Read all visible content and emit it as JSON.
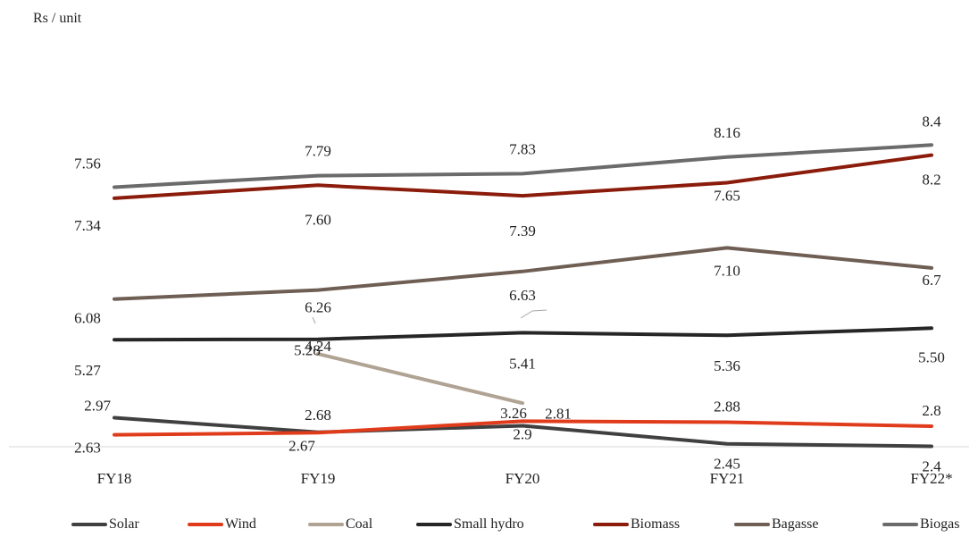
{
  "chart_data": {
    "type": "line",
    "ylabel": "Rs / unit",
    "xlabel": "",
    "categories": [
      "FY18",
      "FY19",
      "FY20",
      "FY21",
      "FY22*"
    ],
    "ylim": [
      0,
      9
    ],
    "grid": false,
    "legend_position": "bottom",
    "series": [
      {
        "name": "Solar",
        "color": "#404040",
        "values": [
          2.97,
          2.68,
          2.81,
          2.45,
          2.4
        ],
        "labels": [
          "2.97",
          "2.68",
          "2.81",
          "2.45",
          "2.4"
        ]
      },
      {
        "name": "Wind",
        "color": "#e03c1c",
        "values": [
          2.63,
          2.67,
          2.9,
          2.88,
          2.8
        ],
        "labels": [
          "2.63",
          "2.67",
          "2.9",
          "2.88",
          "2.8"
        ]
      },
      {
        "name": "Coal",
        "color": "#b0a393",
        "values": [
          null,
          4.24,
          3.26,
          null,
          null
        ],
        "labels": [
          "",
          "4.24",
          "3.26",
          "",
          ""
        ]
      },
      {
        "name": "Small hydro",
        "color": "#262626",
        "values": [
          5.27,
          5.28,
          5.41,
          5.36,
          5.5
        ],
        "labels": [
          "5.27",
          "5.28",
          "5.41",
          "5.36",
          "5.50"
        ]
      },
      {
        "name": "Biomass",
        "color": "#8b1c0c",
        "values": [
          7.34,
          7.6,
          7.39,
          7.65,
          8.2
        ],
        "labels": [
          "7.34",
          "7.60",
          "7.39",
          "7.65",
          "8.2"
        ]
      },
      {
        "name": "Bagasse",
        "color": "#6e5e54",
        "values": [
          6.08,
          6.26,
          6.63,
          7.1,
          6.7
        ],
        "labels": [
          "6.08",
          "6.26",
          "6.63",
          "7.10",
          "6.7"
        ]
      },
      {
        "name": "Biogas",
        "color": "#6b6b6b",
        "values": [
          7.56,
          7.79,
          7.83,
          8.16,
          8.4
        ],
        "labels": [
          "7.56",
          "7.79",
          "7.83",
          "8.16",
          "8.4"
        ]
      }
    ]
  }
}
